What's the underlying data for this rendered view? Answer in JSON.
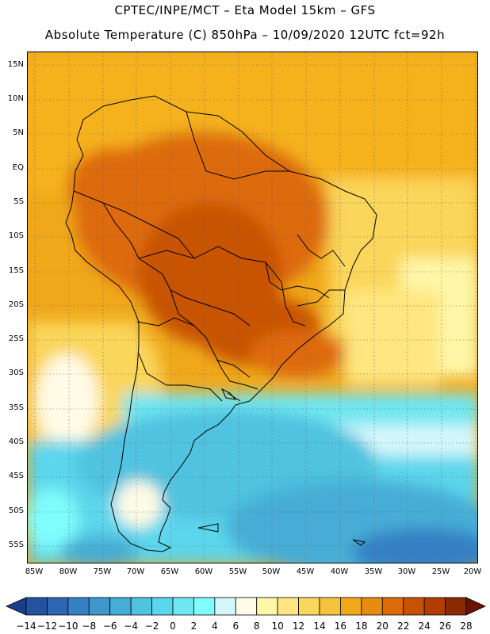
{
  "header": {
    "line1": "CPTEC/INPE/MCT –  Eta Model 15km – GFS",
    "line2": "Absolute Temperature (C) 850hPa – 10/09/2020 12UTC fct=92h"
  },
  "map": {
    "region": "South America",
    "lat_labels": [
      "15N",
      "10N",
      "5N",
      "EQ",
      "5S",
      "10S",
      "15S",
      "20S",
      "25S",
      "30S",
      "35S",
      "40S",
      "45S",
      "50S",
      "55S"
    ],
    "lon_labels": [
      "85W",
      "80W",
      "75W",
      "70W",
      "65W",
      "60W",
      "55W",
      "50W",
      "45W",
      "40W",
      "35W",
      "30W",
      "25W",
      "20W"
    ]
  },
  "legend": {
    "tick_labels": [
      "-14",
      "-12",
      "-10",
      "-8",
      "-6",
      "-4",
      "-2",
      "0",
      "2",
      "4",
      "6",
      "8",
      "10",
      "12",
      "14",
      "16",
      "18",
      "20",
      "22",
      "24",
      "26",
      "28"
    ],
    "colors": [
      "#1a3d8c",
      "#2452a0",
      "#2d66b3",
      "#3680c4",
      "#3f98cc",
      "#46add6",
      "#4fc3e0",
      "#5bd6ec",
      "#6fe6f2",
      "#7ffcfc",
      "#d4f7fb",
      "#fffbe6",
      "#fff7a8",
      "#ffe680",
      "#fad65a",
      "#f5c23c",
      "#f0a81a",
      "#e88c10",
      "#dd6a08",
      "#c85204",
      "#b03e02",
      "#8a2a00",
      "#6b1200"
    ]
  }
}
